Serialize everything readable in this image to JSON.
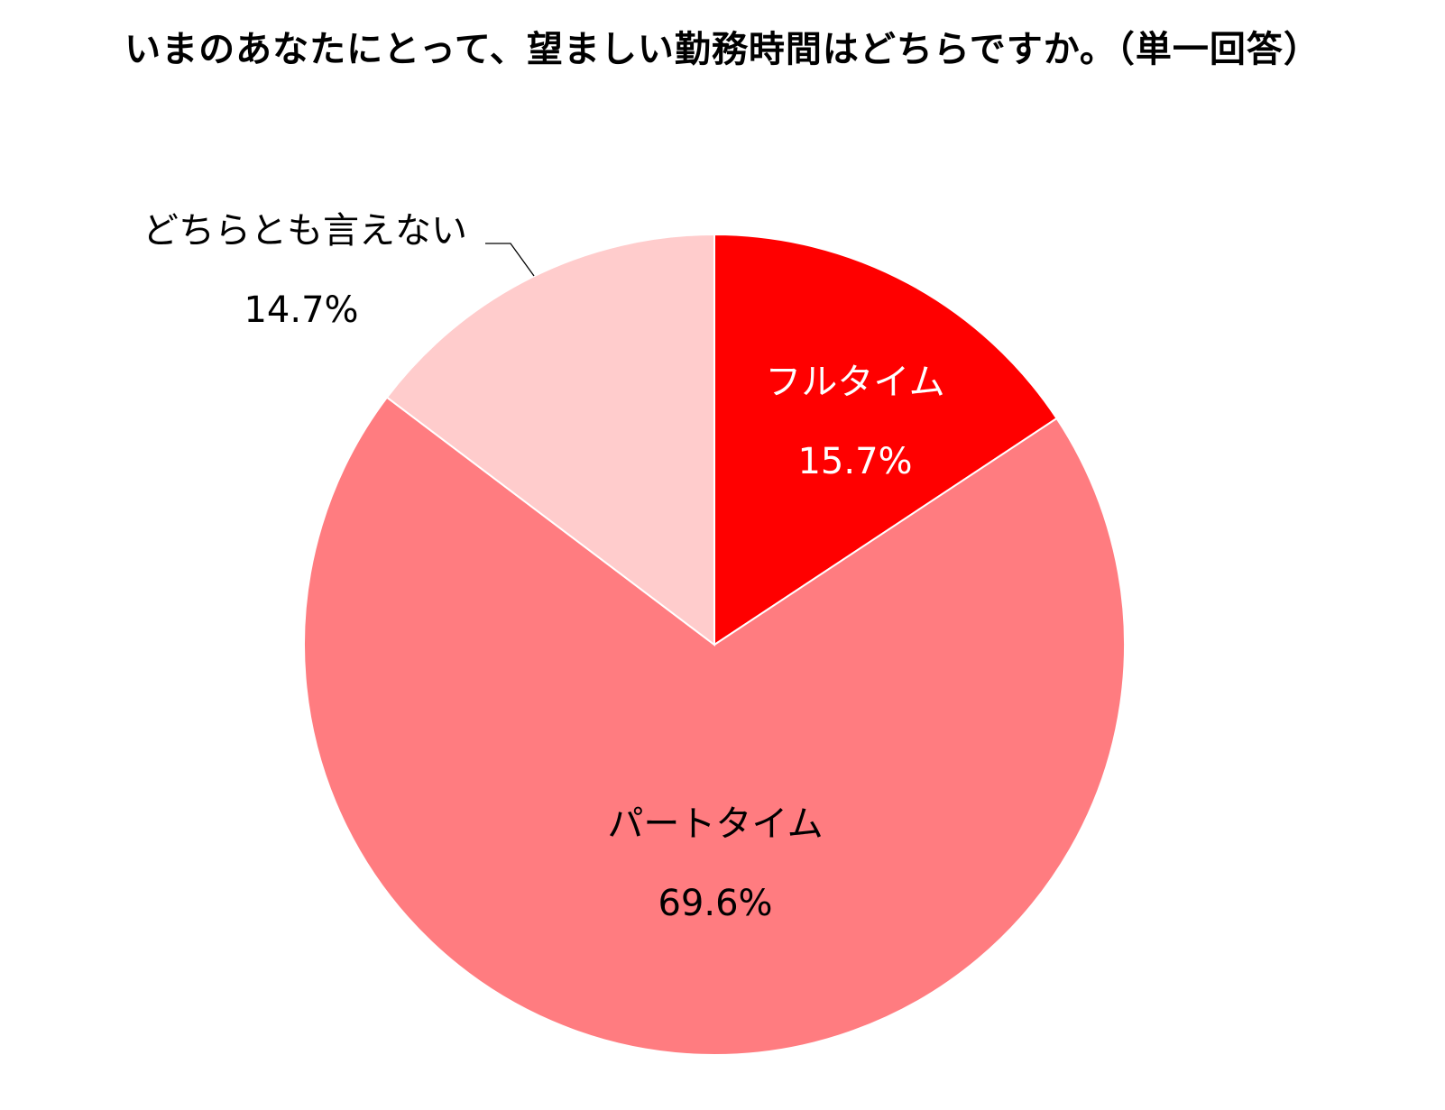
{
  "chart_data": {
    "type": "pie",
    "title": "いまのあなたにとって、望ましい勤務時間はどちらですか。（単一回答）",
    "unit": "%",
    "start_angle_deg": 0,
    "direction": "clockwise",
    "slices": [
      {
        "name": "フルタイム",
        "value": 15.7,
        "value_label": "15.7%",
        "color": "#ff0000",
        "label_inside": true,
        "label_color": "#ffffff"
      },
      {
        "name": "パートタイム",
        "value": 69.6,
        "value_label": "69.6%",
        "color": "#ff7c80",
        "label_inside": true,
        "label_color": "#000000"
      },
      {
        "name": "どちらとも言えない",
        "value": 14.7,
        "value_label": "14.7%",
        "color": "#ffcccc",
        "label_inside": false,
        "label_color": "#000000"
      }
    ],
    "legend": "none"
  }
}
